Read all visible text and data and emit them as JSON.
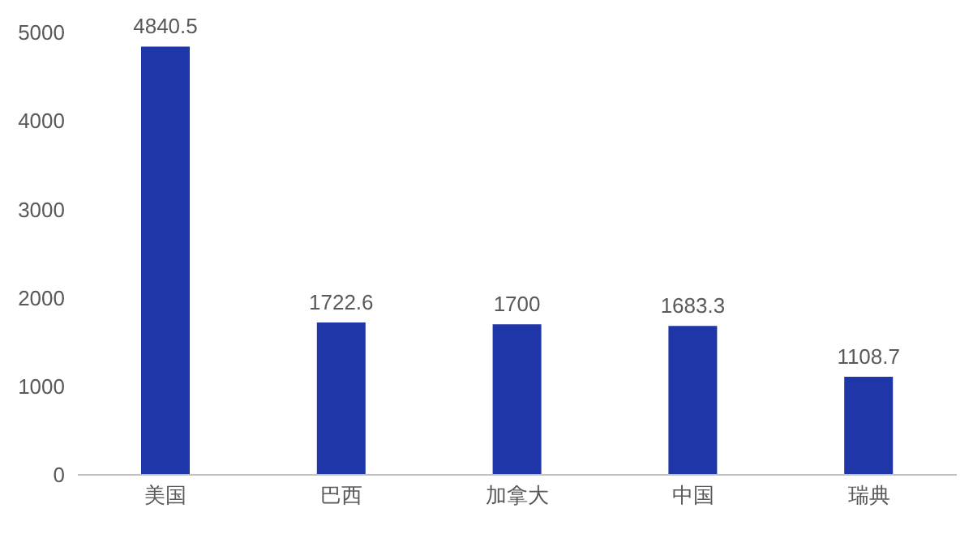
{
  "chart_data": {
    "type": "bar",
    "categories": [
      "美国",
      "巴西",
      "加拿大",
      "中国",
      "瑞典"
    ],
    "values": [
      4840.5,
      1722.6,
      1700,
      1683.3,
      1108.7
    ],
    "color": "#1f36a8",
    "ylim": [
      0,
      5000
    ],
    "yticks": [
      0,
      1000,
      2000,
      3000,
      4000,
      5000
    ],
    "grid": false,
    "data_labels": true
  }
}
